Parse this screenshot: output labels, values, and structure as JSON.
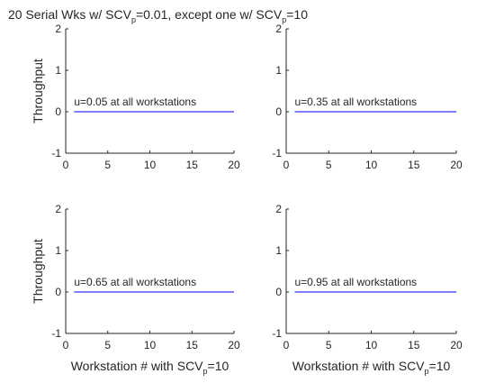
{
  "chart_data": [
    {
      "type": "line",
      "panel": "top-left",
      "title": "20 Serial Wks w/ SCV",
      "title_sub": "p",
      "title_after": "=0.01, except one w/ SCV",
      "title_sub2": "p",
      "title_end": "=10",
      "xlabel": "",
      "xlabel_sub": "",
      "xlabel_end": "",
      "ylabel": "Throughput",
      "xlim": [
        0,
        20
      ],
      "ylim": [
        -1,
        2
      ],
      "xticks": [
        "0",
        "5",
        "10",
        "15",
        "20"
      ],
      "yticks": [
        "-1",
        "0",
        "1",
        "2"
      ],
      "annotation": "u=0.05 at all workstations",
      "annotation_y": 0.15,
      "series": [
        {
          "x": [
            1,
            20
          ],
          "y": [
            0,
            0
          ],
          "color": "#0000ff"
        }
      ]
    },
    {
      "type": "line",
      "panel": "top-right",
      "title": "",
      "xlabel": "",
      "ylabel": "",
      "xlim": [
        0,
        20
      ],
      "ylim": [
        -1,
        2
      ],
      "xticks": [
        "0",
        "5",
        "10",
        "15",
        "20"
      ],
      "yticks": [
        "-1",
        "0",
        "1",
        "2"
      ],
      "annotation": "u=0.35 at all workstations",
      "annotation_y": 0.15,
      "series": [
        {
          "x": [
            1,
            20
          ],
          "y": [
            0,
            0
          ],
          "color": "#0000ff"
        }
      ]
    },
    {
      "type": "line",
      "panel": "bottom-left",
      "title": "",
      "xlabel": "Workstation # with SCV",
      "xlabel_sub": "p",
      "xlabel_end": "=10",
      "ylabel": "Throughput",
      "xlim": [
        0,
        20
      ],
      "ylim": [
        -1,
        2
      ],
      "xticks": [
        "0",
        "5",
        "10",
        "15",
        "20"
      ],
      "yticks": [
        "-1",
        "0",
        "1",
        "2"
      ],
      "annotation": "u=0.65 at all workstations",
      "annotation_y": 0.15,
      "series": [
        {
          "x": [
            1,
            20
          ],
          "y": [
            0,
            0
          ],
          "color": "#0000ff"
        }
      ]
    },
    {
      "type": "line",
      "panel": "bottom-right",
      "title": "",
      "xlabel": "Workstation # with SCV",
      "xlabel_sub": "p",
      "xlabel_end": "=10",
      "ylabel": "",
      "xlim": [
        0,
        20
      ],
      "ylim": [
        -1,
        2
      ],
      "xticks": [
        "0",
        "5",
        "10",
        "15",
        "20"
      ],
      "yticks": [
        "-1",
        "0",
        "1",
        "2"
      ],
      "annotation": "u=0.95 at all workstations",
      "annotation_y": 0.15,
      "series": [
        {
          "x": [
            1,
            20
          ],
          "y": [
            0,
            0
          ],
          "color": "#0000ff"
        }
      ]
    }
  ]
}
